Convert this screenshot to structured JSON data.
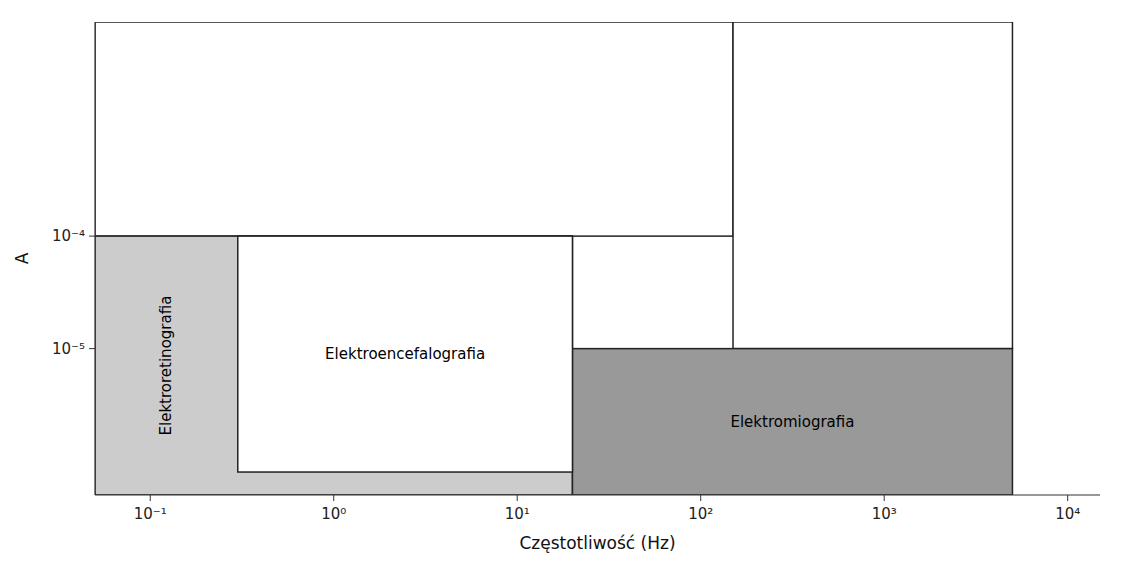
{
  "chart_data": {
    "type": "region",
    "xlabel": "Częstotliwość (Hz)",
    "ylabel": "A",
    "log": true,
    "xlim": [
      0.05,
      15000
    ],
    "ylim": [
      5e-07,
      0.008
    ],
    "xticks": [
      {
        "value": 0.1,
        "label": "10⁻¹"
      },
      {
        "value": 1,
        "label": "10⁰"
      },
      {
        "value": 10,
        "label": "10¹"
      },
      {
        "value": 100,
        "label": "10²"
      },
      {
        "value": 1000,
        "label": "10³"
      },
      {
        "value": 10000,
        "label": "10⁴"
      }
    ],
    "yticks": [
      {
        "value": 1e-05,
        "label": "10⁻⁵"
      },
      {
        "value": 0.0001,
        "label": "10⁻⁴"
      }
    ],
    "regions": [
      {
        "x_min": 0.05,
        "x_max": 150,
        "y_min": 0.0001,
        "y_max": 0.008,
        "color": "#ffffff"
      },
      {
        "x_min": 150,
        "x_max": 5000,
        "y_min": 1e-05,
        "y_max": 0.008,
        "color": "#ffffff"
      },
      {
        "x_min": 0.05,
        "x_max": 20,
        "y_min": 5e-07,
        "y_max": 0.0001,
        "color": "#cccccc",
        "label": "Elektroretinografia"
      },
      {
        "x_min": 20,
        "x_max": 5000,
        "y_min": 5e-07,
        "y_max": 1e-05,
        "color": "#999999",
        "label": "Elektromiografia"
      },
      {
        "x_min": 0.3,
        "x_max": 20,
        "y_min": 8e-07,
        "y_max": 0.0001,
        "color": "#ffffff",
        "label": "Elektroencefalografia"
      }
    ]
  }
}
